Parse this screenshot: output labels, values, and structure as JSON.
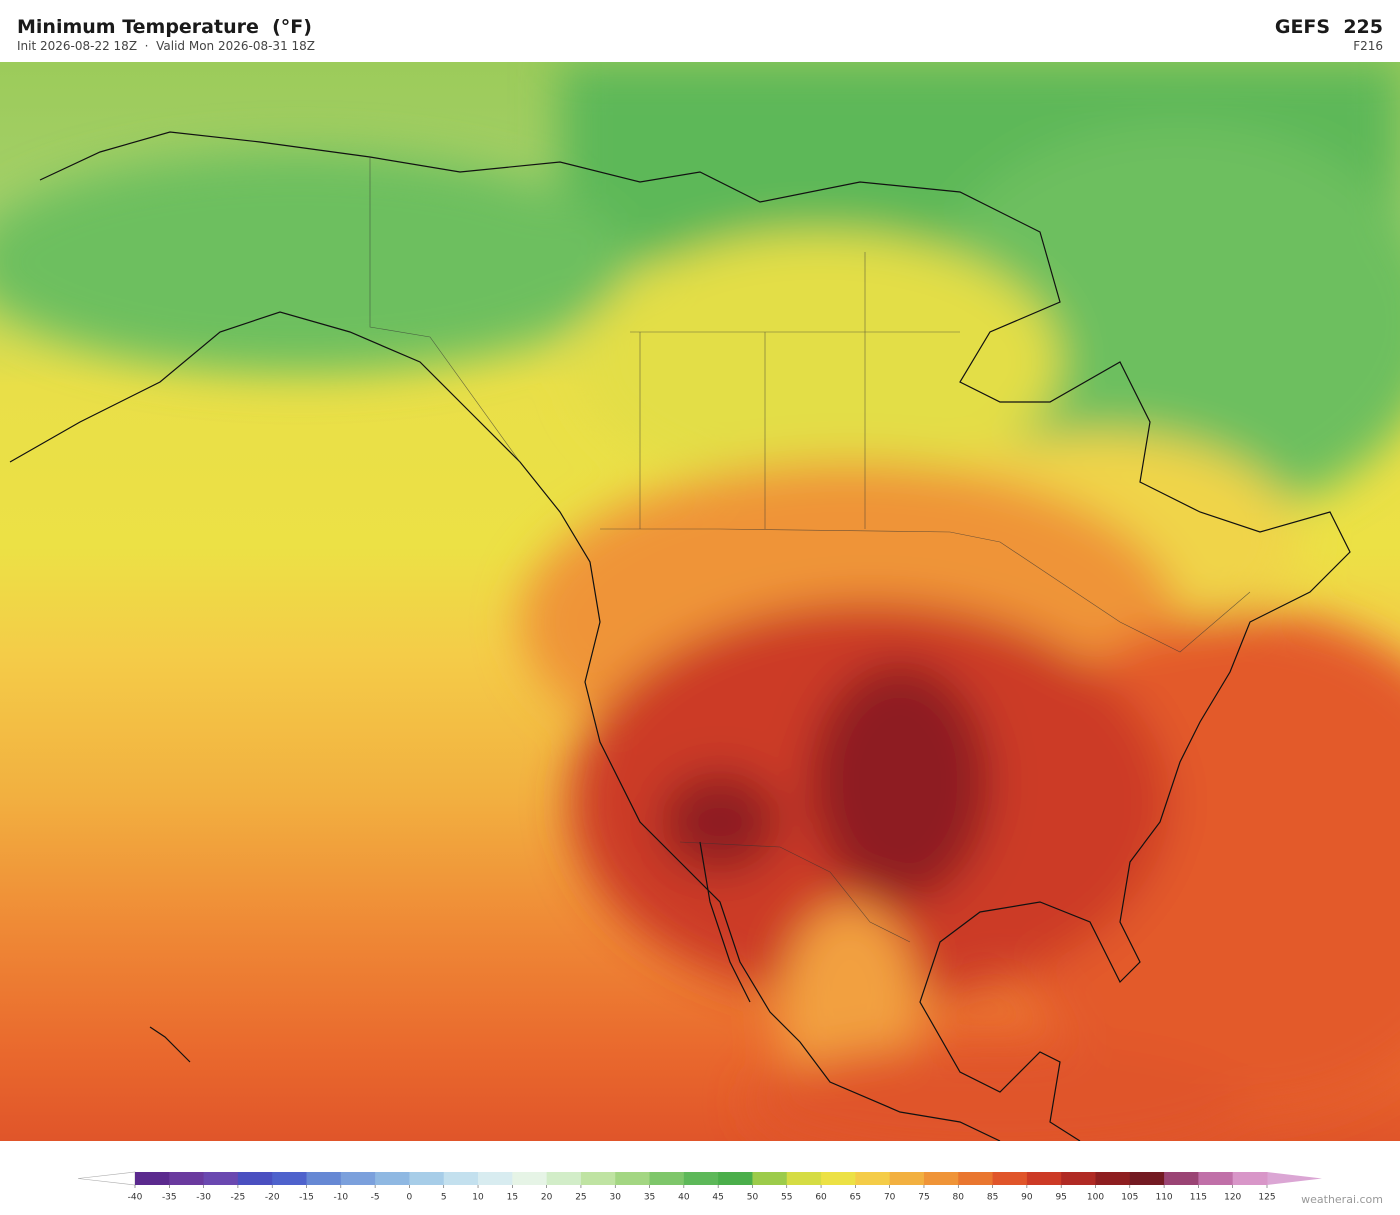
{
  "header": {
    "title": "Minimum Temperature  (°F)",
    "subtitle": "Init 2026-08-22 18Z  ·  Valid Mon 2026-08-31 18Z",
    "model": "GEFS  225",
    "forecast_hour": "F216"
  },
  "colorbar": {
    "ticks": [
      -40,
      -35,
      -30,
      -25,
      -20,
      -15,
      -10,
      -5,
      0,
      5,
      10,
      15,
      20,
      25,
      30,
      35,
      40,
      45,
      50,
      55,
      60,
      65,
      70,
      75,
      80,
      85,
      90,
      95,
      100,
      105,
      110,
      115,
      120,
      125
    ],
    "colors": [
      "#5b2a8e",
      "#6a3a9e",
      "#6a48b0",
      "#4a4fc0",
      "#4e62cc",
      "#6688d4",
      "#7ba0dc",
      "#8fb8e2",
      "#a7cde8",
      "#c3e0ee",
      "#d8ecf0",
      "#e6f4e6",
      "#d2edc8",
      "#bfe3a2",
      "#a3d682",
      "#7ec66a",
      "#5db859",
      "#4aae4a",
      "#9ccb4a",
      "#d5dc44",
      "#ece145",
      "#f4cc48",
      "#f2b040",
      "#ef9438",
      "#e9762f",
      "#e0552a",
      "#cc3a26",
      "#b02a24",
      "#8e1e20",
      "#731a22",
      "#9a4474",
      "#c070a8",
      "#d896c8"
    ],
    "under_color": "#ffffff",
    "over_color": "#dba6d4"
  },
  "credit": "weatherai.com"
}
